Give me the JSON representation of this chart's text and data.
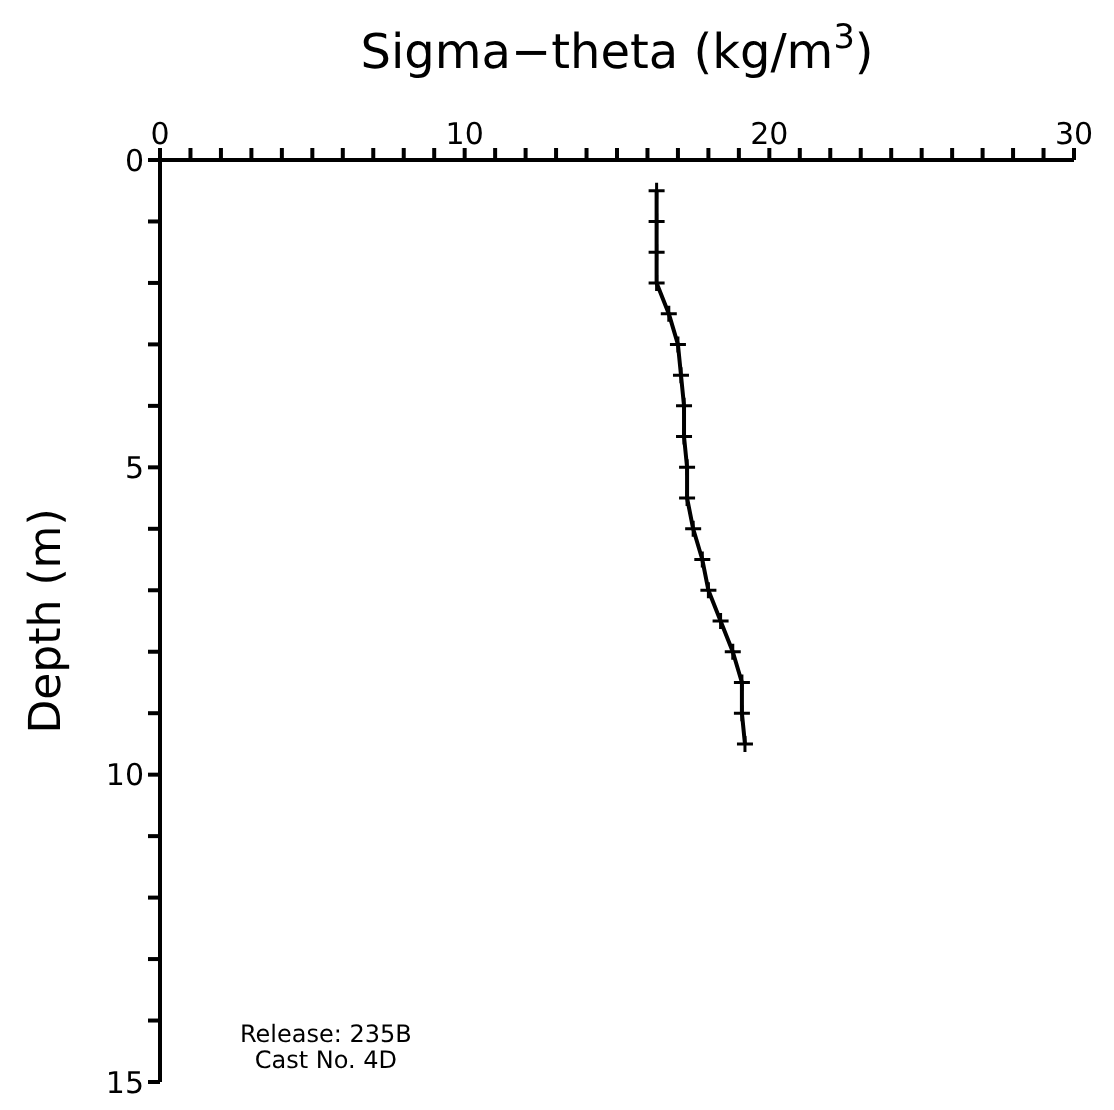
{
  "chart_data": {
    "type": "line",
    "xlabel": "Sigma−theta (kg/m$^{3}$)",
    "ylabel": "Depth (m)",
    "x": [
      16.3,
      16.3,
      16.3,
      16.3,
      16.7,
      17.0,
      17.1,
      17.2,
      17.2,
      17.3,
      17.3,
      17.5,
      17.8,
      18.0,
      18.4,
      18.8,
      19.1,
      19.1,
      19.2
    ],
    "series": [
      {
        "color": "#000000",
        "values": [
          0.5,
          1.0,
          1.5,
          2.0,
          2.5,
          3.0,
          3.5,
          4.0,
          4.5,
          5.0,
          5.5,
          6.0,
          6.5,
          7.0,
          7.5,
          8.0,
          8.5,
          9.0,
          9.5
        ]
      }
    ],
    "xlim": [
      0,
      30
    ],
    "xticks": [
      0,
      {
        "value": 1,
        "label": null
      },
      {
        "value": 2,
        "label": null
      },
      {
        "value": 3,
        "label": null
      },
      {
        "value": 4,
        "label": null
      },
      {
        "value": 5,
        "label": null
      },
      {
        "value": 6,
        "label": null
      },
      {
        "value": 7,
        "label": null
      },
      {
        "value": 8,
        "label": null
      },
      {
        "value": 9,
        "label": null
      },
      10,
      {
        "value": 11,
        "label": null
      },
      {
        "value": 12,
        "label": null
      },
      {
        "value": 13,
        "label": null
      },
      {
        "value": 14,
        "label": null
      },
      {
        "value": 15,
        "label": null
      },
      {
        "value": 16,
        "label": null
      },
      {
        "value": 17,
        "label": null
      },
      {
        "value": 18,
        "label": null
      },
      {
        "value": 19,
        "label": null
      },
      20,
      {
        "value": 21,
        "label": null
      },
      {
        "value": 22,
        "label": null
      },
      {
        "value": 23,
        "label": null
      },
      {
        "value": 24,
        "label": null
      },
      {
        "value": 25,
        "label": null
      },
      {
        "value": 26,
        "label": null
      },
      {
        "value": 27,
        "label": null
      },
      {
        "value": 28,
        "label": null
      },
      {
        "value": 29,
        "label": null
      },
      30
    ],
    "ylim": [
      15,
      0
    ],
    "yticks": [
      0,
      {
        "value": 1,
        "label": null
      },
      {
        "value": 2,
        "label": null
      },
      {
        "value": 3,
        "label": null
      },
      {
        "value": 4,
        "label": null
      },
      5,
      {
        "value": 6,
        "label": null
      },
      {
        "value": 7,
        "label": null
      },
      {
        "value": 8,
        "label": null
      },
      {
        "value": 9,
        "label": null
      },
      10,
      {
        "value": 11,
        "label": null
      },
      {
        "value": 12,
        "label": null
      },
      {
        "value": 13,
        "label": null
      },
      {
        "value": 14,
        "label": null
      },
      15
    ],
    "marker": "cross",
    "line_style": "solid",
    "grid": false,
    "legend": false,
    "annotations": [
      "Release: 235B",
      "Cast No. 4D"
    ]
  }
}
